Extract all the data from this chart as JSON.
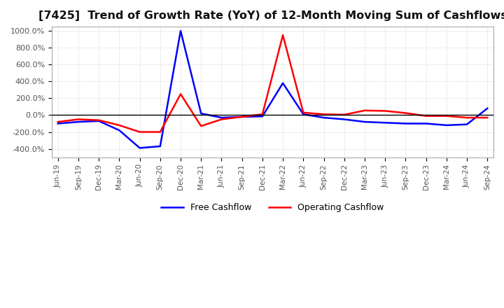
{
  "title": "[7425]  Trend of Growth Rate (YoY) of 12-Month Moving Sum of Cashflows",
  "title_fontsize": 11.5,
  "ylim": [
    -500,
    1050
  ],
  "yticks": [
    -400,
    -200,
    0,
    200,
    400,
    600,
    800,
    1000
  ],
  "ytick_labels": [
    "-400.0%",
    "-200.0%",
    "0.0%",
    "200.0%",
    "400.0%",
    "600.0%",
    "800.0%",
    "1000.0%"
  ],
  "x_labels": [
    "Jun-19",
    "Sep-19",
    "Dec-19",
    "Mar-20",
    "Jun-20",
    "Sep-20",
    "Dec-20",
    "Mar-21",
    "Jun-21",
    "Sep-21",
    "Dec-21",
    "Mar-22",
    "Jun-22",
    "Sep-22",
    "Dec-22",
    "Mar-23",
    "Jun-23",
    "Sep-23",
    "Dec-23",
    "Mar-24",
    "Jun-24",
    "Sep-24"
  ],
  "operating_cashflow": [
    -80,
    -50,
    -60,
    -120,
    -200,
    -200,
    250,
    -130,
    -50,
    -20,
    10,
    950,
    30,
    10,
    5,
    55,
    50,
    25,
    -10,
    -10,
    -30,
    -30
  ],
  "free_cashflow": [
    -100,
    -80,
    -70,
    -180,
    -390,
    -370,
    1000,
    20,
    -30,
    -20,
    -15,
    380,
    10,
    -30,
    -50,
    -80,
    -90,
    -100,
    -100,
    -120,
    -110,
    80
  ],
  "op_color": "#ff0000",
  "free_color": "#0000ff",
  "background_color": "#ffffff",
  "grid_color": "#c8c8c8",
  "legend_labels": [
    "Operating Cashflow",
    "Free Cashflow"
  ]
}
